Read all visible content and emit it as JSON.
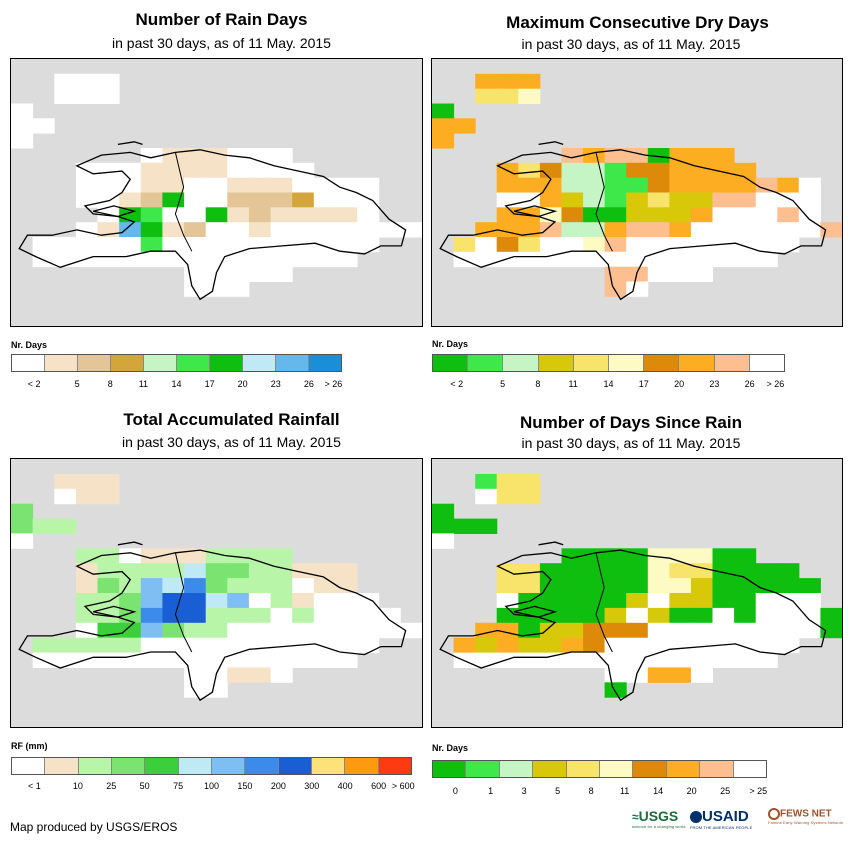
{
  "panels": [
    {
      "id": "rain-days",
      "title": "Number of Rain Days",
      "subtitle": "in past 30 days, as of 11 May. 2015",
      "legend": {
        "title": "Nr. Days",
        "colors": [
          "#ffffff",
          "#f5e2c7",
          "#e3c597",
          "#d3a53a",
          "#c5f5c5",
          "#3fe84a",
          "#0fbf0f",
          "#bfeaf5",
          "#64b8ec",
          "#1a8ed6"
        ],
        "labels": [
          "< 2",
          "5",
          "8",
          "11",
          "14",
          "17",
          "20",
          "23",
          "26",
          "> 26"
        ]
      }
    },
    {
      "id": "max-dry-days",
      "title": "Maximum Consecutive Dry Days",
      "subtitle": "in past 30 days, as of 11 May. 2015",
      "legend": {
        "title": "Nr. Days",
        "colors": [
          "#0fbf0f",
          "#3fe84a",
          "#c5f5c5",
          "#d8c80a",
          "#f8e46a",
          "#fdfbc3",
          "#dd8a0a",
          "#fdad22",
          "#fdbf8f",
          "#ffffff"
        ],
        "labels": [
          "< 2",
          "5",
          "8",
          "11",
          "14",
          "17",
          "20",
          "23",
          "26",
          "> 26"
        ]
      }
    },
    {
      "id": "total-rainfall",
      "title": "Total Accumulated Rainfall",
      "subtitle": "in past 30 days, as of 11 May. 2015",
      "legend": {
        "title": "RF (mm)",
        "colors": [
          "#ffffff",
          "#f5e2c7",
          "#b9f5a9",
          "#7be36f",
          "#3ccf3c",
          "#bfeaf5",
          "#7ebef2",
          "#3c8bea",
          "#1a5ed6",
          "#fde27a",
          "#fd9a10",
          "#fd3a10"
        ],
        "labels": [
          "< 1",
          "10",
          "25",
          "50",
          "75",
          "100",
          "150",
          "200",
          "300",
          "400",
          "600",
          "> 600"
        ]
      }
    },
    {
      "id": "days-since-rain",
      "title": "Number of Days Since Rain",
      "subtitle": "in past 30 days, as of 11 May. 2015",
      "legend": {
        "title": "Nr. Days",
        "colors": [
          "#0fbf0f",
          "#3fe84a",
          "#c5f5c5",
          "#d8c80a",
          "#f8e46a",
          "#fdfbc3",
          "#dd8a0a",
          "#fdad22",
          "#fdbf8f",
          "#ffffff"
        ],
        "labels": [
          "0",
          "1",
          "3",
          "5",
          "8",
          "11",
          "14",
          "20",
          "25",
          "> 25"
        ]
      }
    }
  ],
  "credit": "Map produced by USGS/EROS",
  "logos": {
    "usgs": "USGS",
    "usgs_tagline": "science for a changing world",
    "usaid": "USAID",
    "usaid_tagline": "FROM THE AMERICAN PEOPLE",
    "fewsnet": "FEWS NET",
    "fewsnet_tagline": "Famine Early Warning Systems Network"
  },
  "grids": {
    "rain-days": [
      "...................",
      "..WWW..............",
      "..WWW..............",
      "W..................",
      "WW.................",
      "W..................",
      "......WTTTWWW......",
      "...WWWTTTTWWWW.....",
      "...WWWTTWWTTTWWWW..",
      "...WWTMGWWMMMDWWW..",
      "....WGFWWGTMTTTTW..",
      "...WTNGTMWWTWWWWWWW",
      ".WWWWWFWWWWWWWWWW..",
      ".WWWWWWWWWWWWWWW...",
      "........WWWWW......",
      "........WWW........",
      "...................",
      "..................."
    ],
    "max-dry-days": [
      "...................",
      "..RRR..............",
      "..YYC..............",
      "G..................",
      "RR.................",
      "R..................",
      "......XRXXGRRR.....",
      "...RYSLLFSSRRRR....",
      "...RRRLLFFSRRRRXRW.",
      "...WWRMLFMYMMXPWWW.",
      "...RRCSGGMMMRWWWPW.",
      "..RRRXLLRXPRWWWWWWP",
      ".YWSYWWCXWWWWWWWW..",
      ".WWWWWWWWWWWWWWW...",
      "........XXWWW......",
      "........XW.........",
      "...................",
      "..................."
    ],
    "total-rainfall": [
      "...................",
      "..TTT..............",
      "..WTT..............",
      "G..................",
      "GBB................",
      "W..................",
      "...BBWTTTBBBB......",
      "...TBBBBOGGBBTTT...",
      "...TGBAOQGBBBWTT...",
      "...BBGPDDOAWBTWWW..",
      "...BBGQDDBBBWBWWWW.",
      "...WMMPGBBWWWWWWWWW",
      ".BBBBBWWWWWWWWWWW..",
      ".WWWWWWWWWWWWWWW...",
      "........WWTTW......",
      "........WW.........",
      "...................",
      "..................."
    ],
    "days-since-rain": [
      "...................",
      "..FYY..............",
      "..WYY..............",
      "G..................",
      "GGG................",
      "W..................",
      "......GGGGCCCGG....",
      "...YYGGGGGCYYGGGG..",
      "...YYGGGGGCCMGGGGG.",
      "...WGGGGGMWMMGGWWW.",
      "...GGGGGMWMGGWGWWWG",
      "..SSGMMRRRWWWWWWWWG",
      ".SMSMMSRWWWWWWWWW..",
      ".WWWWWWWWWWWWWWW...",
      "........WWSSW......",
      "........G..........",
      "...................",
      "..................."
    ]
  },
  "palettes": {
    "rain-days": {
      "W": "#ffffff",
      "T": "#f5e2c7",
      "M": "#e3c597",
      "D": "#d3a53a",
      "L": "#c5f5c5",
      "F": "#3fe84a",
      "G": "#0fbf0f",
      "C": "#bfeaf5",
      "N": "#64b8ec"
    },
    "max-dry-days": {
      "W": "#ffffff",
      "G": "#0fbf0f",
      "F": "#3fe84a",
      "L": "#c5f5c5",
      "M": "#d8c80a",
      "Y": "#f8e46a",
      "C": "#fdfbc3",
      "S": "#dd8a0a",
      "R": "#fdad22",
      "X": "#fdbf8f",
      "P": "#fdbf8f"
    },
    "total-rainfall": {
      "W": "#ffffff",
      "T": "#f5e2c7",
      "B": "#b9f5a9",
      "G": "#7be36f",
      "M": "#3ccf3c",
      "O": "#bfeaf5",
      "A": "#7ebef2",
      "Q": "#3c8bea",
      "D": "#1a5ed6",
      "P": "#7ebef2"
    },
    "days-since-rain": {
      "W": "#ffffff",
      "G": "#0fbf0f",
      "F": "#3fe84a",
      "C": "#fdfbc3",
      "M": "#d8c80a",
      "Y": "#f8e46a",
      "S": "#fdad22",
      "R": "#dd8a0a"
    }
  }
}
